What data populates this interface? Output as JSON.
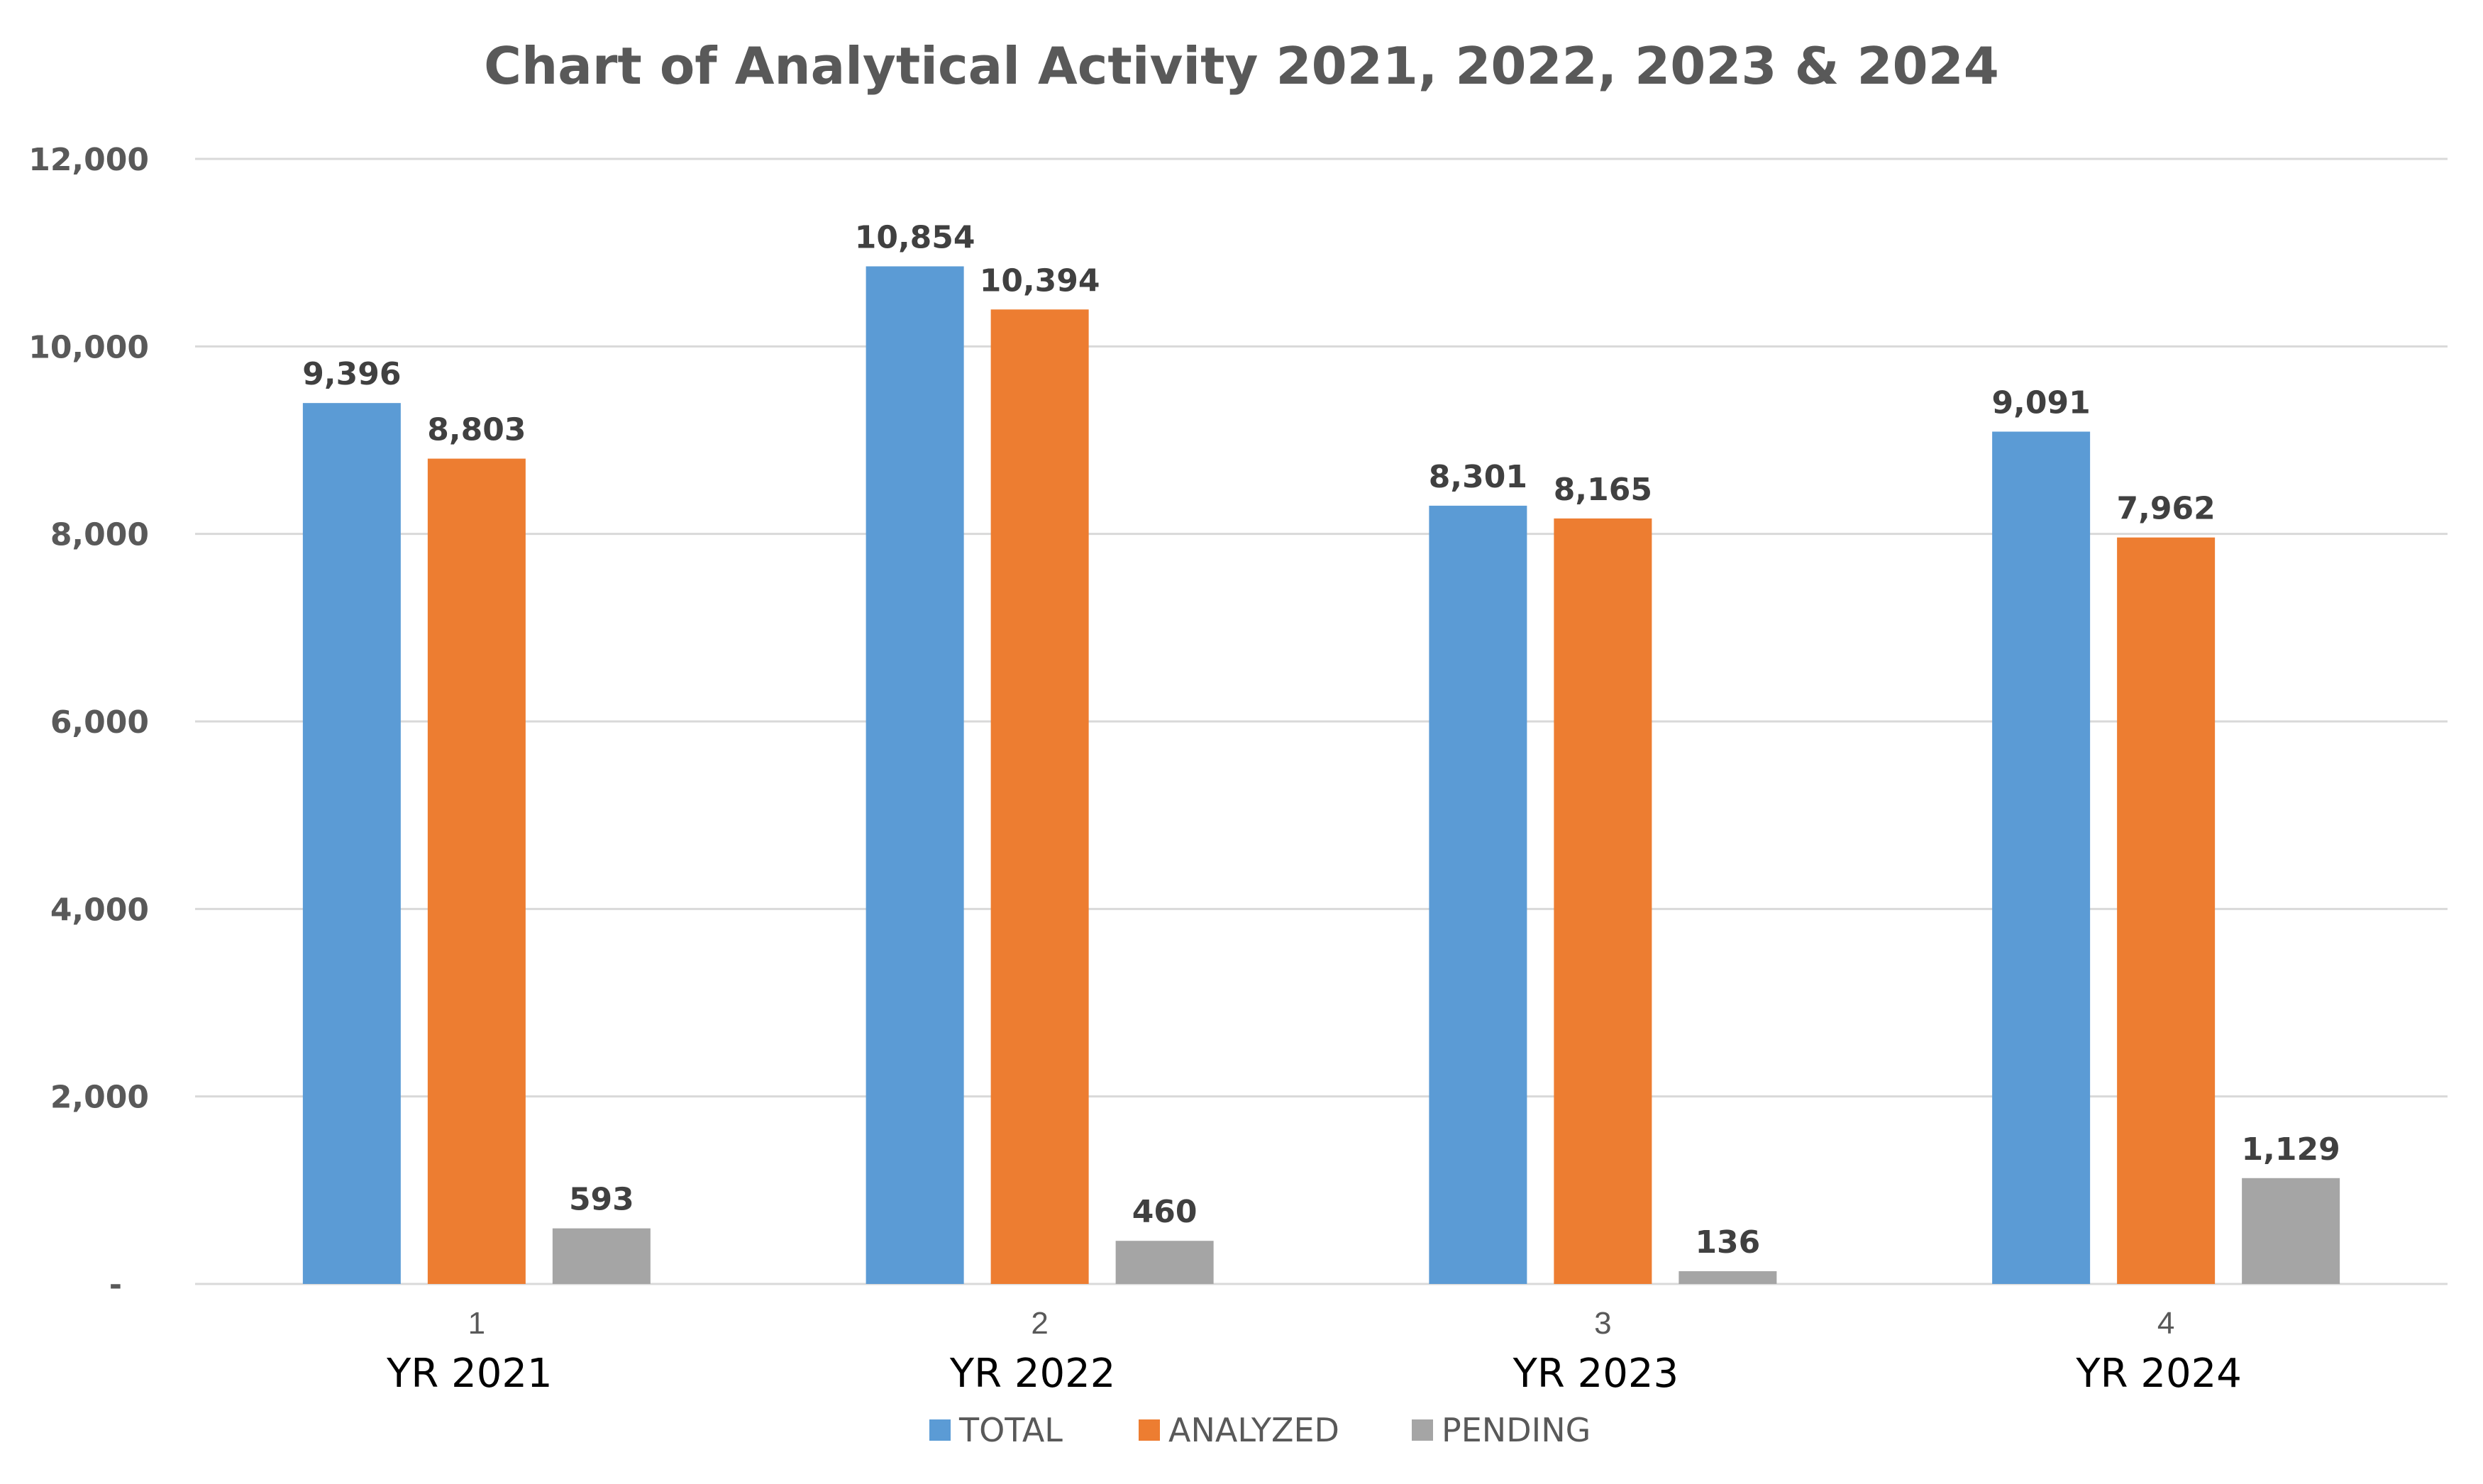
{
  "chart_data": {
    "type": "bar",
    "title": "Chart of Analytical Activity 2021, 2022, 2023 & 2024",
    "categories": [
      "1",
      "2",
      "3",
      "4"
    ],
    "category_labels": [
      "YR 2021",
      "YR 2022",
      "YR 2023",
      "YR 2024"
    ],
    "series": [
      {
        "name": "TOTAL",
        "color": "#5b9bd5",
        "values": [
          9396,
          10854,
          8301,
          9091
        ],
        "labels": [
          "9,396",
          "10,854",
          "8,301",
          "9,091"
        ]
      },
      {
        "name": "ANALYZED",
        "color": "#ed7d31",
        "values": [
          8803,
          10394,
          8165,
          7962
        ],
        "labels": [
          "8,803",
          "10,394",
          "8,165",
          "7,962"
        ]
      },
      {
        "name": "PENDING",
        "color": "#a5a5a5",
        "values": [
          593,
          460,
          136,
          1129
        ],
        "labels": [
          "593",
          "460",
          "136",
          "1,129"
        ]
      }
    ],
    "ylim": [
      0,
      12000
    ],
    "yticks": [
      0,
      2000,
      4000,
      6000,
      8000,
      10000,
      12000
    ],
    "ytick_labels": [
      "-",
      "2,000",
      "4,000",
      "6,000",
      "8,000",
      "10,000",
      "12,000"
    ],
    "grid": true,
    "legend_position": "bottom",
    "xlabel": "",
    "ylabel": ""
  }
}
